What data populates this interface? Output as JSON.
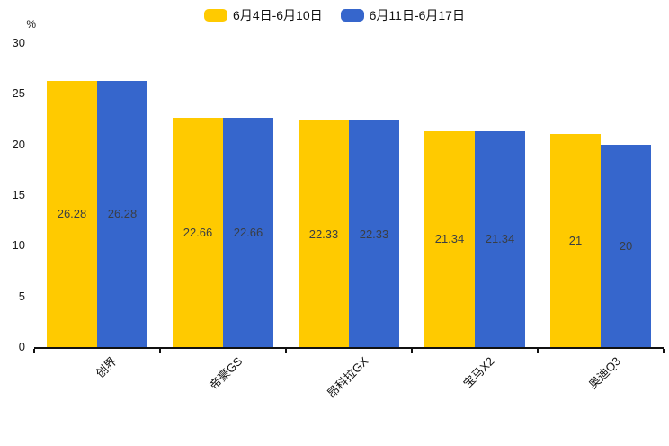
{
  "chart_data": {
    "type": "bar",
    "title": "",
    "unit": "%",
    "categories": [
      "创界",
      "帝豪GS",
      "昂科拉GX",
      "宝马X2",
      "奥迪Q3"
    ],
    "series": [
      {
        "name": "6月4日-6月10日",
        "color": "#FFCA00",
        "values": [
          26.28,
          22.66,
          22.33,
          21.34,
          21
        ]
      },
      {
        "name": "6月11日-6月17日",
        "color": "#3666CC",
        "values": [
          26.28,
          22.66,
          22.33,
          21.34,
          20
        ]
      }
    ],
    "bar_labels": [
      "26.28",
      "22.66",
      "22.33",
      "21.34",
      "21",
      "26.28",
      "22.66",
      "22.33",
      "21.34",
      "20"
    ],
    "ylabel": "%",
    "ylim": [
      0,
      30
    ],
    "yticks": [
      0,
      5,
      10,
      15,
      20,
      25,
      30
    ],
    "grid": false,
    "legend_position": "top",
    "xtick_rotation": 45,
    "label_position": "inside-middle"
  }
}
